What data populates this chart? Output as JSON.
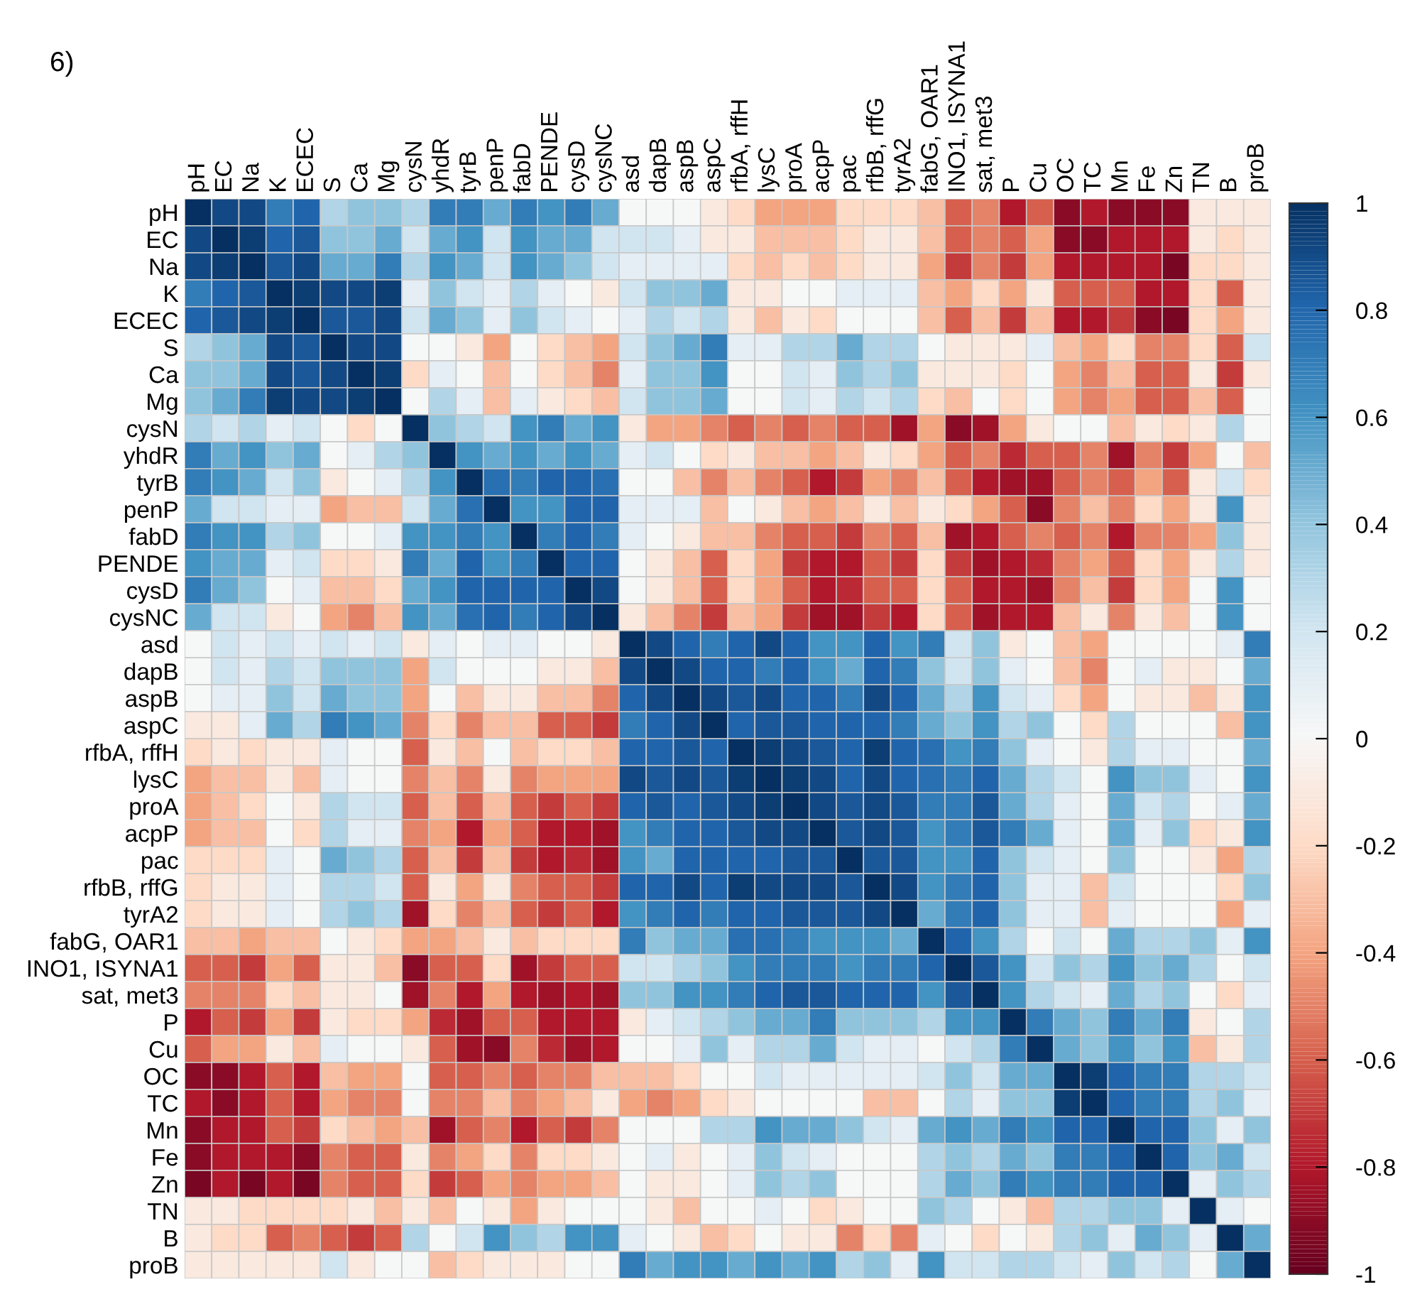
{
  "chart_data": {
    "type": "heatmap",
    "title": "6)",
    "categories": [
      "pH",
      "EC",
      "Na",
      "K",
      "ECEC",
      "S",
      "Ca",
      "Mg",
      "cysN",
      "yhdR",
      "tyrB",
      "penP",
      "fabD",
      "PENDE",
      "cysD",
      "cysNC",
      "asd",
      "dapB",
      "aspB",
      "aspC",
      "rfbA, rffH",
      "lysC",
      "proA",
      "acpP",
      "pac",
      "rfbB, rffG",
      "tyrA2",
      "fabG, OAR1",
      "INO1, ISYNA1",
      "sat, met3",
      "P",
      "Cu",
      "OC",
      "TC",
      "Mn",
      "Fe",
      "Zn",
      "TN",
      "B",
      "proB"
    ],
    "y_categories": [
      "pH",
      "EC",
      "Na",
      "K",
      "ECEC",
      "S",
      "Ca",
      "Mg",
      "cysN",
      "yhdR",
      "tyrB",
      "penP",
      "fabD",
      "PENDE",
      "cysD",
      "cysNC",
      "asd",
      "dapB",
      "aspB",
      "aspC",
      "rfbA, rffH",
      "lysC",
      "proA",
      "acpP",
      "pac",
      "rfbB, rffG",
      "tyrA2",
      "fabG, OAR1",
      "INO1, ISYNA1",
      "sat, met3",
      "P",
      "Cu",
      "OC",
      "TC",
      "Mn",
      "Fe",
      "Zn",
      "TN",
      "B",
      "proB"
    ],
    "cells": [
      [
        1,
        0.9,
        0.9,
        0.7,
        0.8,
        0.3,
        0.4,
        0.4,
        0.3,
        0.7,
        0.7,
        0.5,
        0.7,
        0.6,
        0.7,
        0.5,
        0,
        0,
        0,
        -0.1,
        -0.2,
        -0.4,
        -0.4,
        -0.4,
        -0.2,
        -0.2,
        -0.2,
        -0.3,
        -0.6,
        -0.5,
        -0.8,
        -0.6,
        -0.9,
        -0.8,
        -0.9,
        -0.9,
        -0.9,
        -0.1,
        -0.1,
        -0.1
      ],
      [
        0.9,
        1,
        0.95,
        0.8,
        0.85,
        0.4,
        0.4,
        0.5,
        0.2,
        0.5,
        0.6,
        0.2,
        0.6,
        0.5,
        0.5,
        0.2,
        0.2,
        0.2,
        0.1,
        -0.1,
        -0.1,
        -0.3,
        -0.3,
        -0.3,
        -0.2,
        -0.1,
        -0.1,
        -0.3,
        -0.6,
        -0.5,
        -0.6,
        -0.4,
        -0.9,
        -0.9,
        -0.8,
        -0.8,
        -0.8,
        -0.1,
        -0.2,
        -0.1
      ],
      [
        0.9,
        0.95,
        1,
        0.85,
        0.9,
        0.5,
        0.5,
        0.7,
        0.3,
        0.6,
        0.5,
        0.2,
        0.6,
        0.5,
        0.4,
        0.2,
        0.1,
        0.1,
        0.1,
        0.1,
        -0.2,
        -0.3,
        -0.2,
        -0.3,
        -0.2,
        -0.1,
        -0.1,
        -0.4,
        -0.7,
        -0.5,
        -0.7,
        -0.4,
        -0.8,
        -0.8,
        -0.8,
        -0.8,
        -0.95,
        -0.2,
        -0.2,
        -0.1
      ],
      [
        0.7,
        0.8,
        0.85,
        1,
        0.95,
        0.9,
        0.9,
        0.95,
        0.1,
        0.4,
        0.2,
        0.1,
        0.3,
        0.1,
        0,
        -0.1,
        0.2,
        0.4,
        0.4,
        0.5,
        -0.1,
        -0.1,
        0,
        0,
        0.1,
        0.1,
        0.1,
        -0.3,
        -0.4,
        -0.2,
        -0.4,
        -0.1,
        -0.6,
        -0.6,
        -0.6,
        -0.8,
        -0.8,
        -0.2,
        -0.6,
        -0.1
      ],
      [
        0.8,
        0.85,
        0.9,
        0.95,
        1,
        0.85,
        0.85,
        0.9,
        0.2,
        0.5,
        0.4,
        0.1,
        0.4,
        0.2,
        0.1,
        0,
        0.1,
        0.3,
        0.2,
        0.3,
        -0.1,
        -0.3,
        -0.1,
        -0.2,
        0,
        0,
        0,
        -0.3,
        -0.6,
        -0.3,
        -0.7,
        -0.3,
        -0.8,
        -0.8,
        -0.7,
        -0.9,
        -0.95,
        -0.2,
        -0.4,
        -0.1
      ],
      [
        0.3,
        0.4,
        0.5,
        0.9,
        0.85,
        1,
        0.9,
        0.9,
        0,
        0,
        -0.1,
        -0.4,
        0,
        -0.2,
        -0.3,
        -0.4,
        0.2,
        0.4,
        0.5,
        0.7,
        0.1,
        0.1,
        0.3,
        0.3,
        0.5,
        0.3,
        0.3,
        0,
        -0.1,
        -0.1,
        -0.1,
        0.1,
        -0.3,
        -0.4,
        -0.2,
        -0.5,
        -0.5,
        -0.2,
        -0.6,
        0.2
      ],
      [
        0.4,
        0.4,
        0.5,
        0.9,
        0.85,
        0.9,
        1,
        0.95,
        -0.2,
        0.1,
        0,
        -0.3,
        0,
        -0.2,
        -0.3,
        -0.5,
        0.1,
        0.4,
        0.4,
        0.6,
        0,
        0,
        0.2,
        0.1,
        0.4,
        0.3,
        0.4,
        -0.1,
        -0.1,
        -0.1,
        -0.2,
        0,
        -0.4,
        -0.5,
        -0.3,
        -0.6,
        -0.6,
        -0.1,
        -0.7,
        -0.1
      ],
      [
        0.4,
        0.5,
        0.7,
        0.95,
        0.9,
        0.9,
        0.95,
        1,
        0,
        0.3,
        0.1,
        -0.3,
        0.1,
        -0.1,
        -0.2,
        -0.3,
        0.2,
        0.4,
        0.4,
        0.5,
        0,
        0,
        0.2,
        0.1,
        0.3,
        0.2,
        0.3,
        -0.2,
        -0.3,
        0,
        -0.2,
        0,
        -0.4,
        -0.5,
        -0.4,
        -0.6,
        -0.6,
        -0.3,
        -0.6,
        0
      ],
      [
        0.3,
        0.2,
        0.3,
        0.1,
        0.2,
        0,
        -0.2,
        0,
        1,
        0.4,
        0.3,
        0.2,
        0.6,
        0.7,
        0.5,
        0.6,
        -0.1,
        -0.4,
        -0.4,
        -0.5,
        -0.6,
        -0.5,
        -0.6,
        -0.5,
        -0.6,
        -0.6,
        -0.85,
        -0.4,
        -0.9,
        -0.85,
        -0.4,
        -0.1,
        0,
        0,
        -0.3,
        -0.1,
        -0.2,
        -0.1,
        0.3,
        0
      ],
      [
        0.7,
        0.5,
        0.6,
        0.4,
        0.5,
        0,
        0.1,
        0.3,
        0.4,
        1,
        0.6,
        0.5,
        0.6,
        0.5,
        0.6,
        0.5,
        0.1,
        0.2,
        0,
        -0.2,
        -0.1,
        -0.3,
        -0.3,
        -0.4,
        -0.3,
        -0.1,
        -0.2,
        -0.4,
        -0.6,
        -0.5,
        -0.75,
        -0.6,
        -0.6,
        -0.5,
        -0.85,
        -0.5,
        -0.7,
        -0.4,
        0,
        -0.3
      ],
      [
        0.7,
        0.6,
        0.5,
        0.2,
        0.4,
        -0.1,
        0,
        0.1,
        0.3,
        0.6,
        1,
        0.75,
        0.7,
        0.8,
        0.8,
        0.75,
        0,
        0,
        -0.3,
        -0.5,
        -0.3,
        -0.5,
        -0.6,
        -0.8,
        -0.7,
        -0.4,
        -0.5,
        -0.3,
        -0.6,
        -0.8,
        -0.85,
        -0.85,
        -0.6,
        -0.5,
        -0.6,
        -0.4,
        -0.6,
        -0.1,
        0.2,
        -0.2
      ],
      [
        0.5,
        0.2,
        0.2,
        0.1,
        0.1,
        -0.4,
        -0.3,
        -0.3,
        0.2,
        0.5,
        0.75,
        1,
        0.6,
        0.6,
        0.8,
        0.8,
        0.1,
        0.1,
        0.1,
        -0.3,
        0,
        -0.1,
        -0.3,
        -0.4,
        -0.3,
        -0.1,
        -0.3,
        -0.1,
        -0.2,
        -0.4,
        -0.6,
        -0.9,
        -0.5,
        -0.3,
        -0.5,
        -0.2,
        -0.4,
        -0.1,
        0.6,
        -0.1
      ],
      [
        0.7,
        0.6,
        0.6,
        0.3,
        0.4,
        0,
        0,
        0.1,
        0.6,
        0.6,
        0.7,
        0.6,
        1,
        0.7,
        0.8,
        0.7,
        0.1,
        0,
        -0.1,
        -0.3,
        -0.3,
        -0.5,
        -0.6,
        -0.6,
        -0.7,
        -0.5,
        -0.6,
        -0.3,
        -0.85,
        -0.8,
        -0.6,
        -0.5,
        -0.6,
        -0.5,
        -0.8,
        -0.5,
        -0.5,
        -0.4,
        0.4,
        -0.1
      ],
      [
        0.6,
        0.5,
        0.5,
        0.1,
        0.2,
        -0.2,
        -0.2,
        -0.1,
        0.7,
        0.5,
        0.8,
        0.6,
        0.7,
        1,
        0.8,
        0.8,
        0,
        -0.1,
        -0.3,
        -0.6,
        -0.2,
        -0.4,
        -0.7,
        -0.8,
        -0.8,
        -0.6,
        -0.7,
        -0.2,
        -0.7,
        -0.85,
        -0.8,
        -0.75,
        -0.5,
        -0.4,
        -0.6,
        -0.2,
        -0.4,
        -0.1,
        0.3,
        -0.1
      ],
      [
        0.7,
        0.5,
        0.4,
        0,
        0.1,
        -0.3,
        -0.3,
        -0.2,
        0.5,
        0.6,
        0.8,
        0.8,
        0.8,
        0.8,
        1,
        0.9,
        0,
        -0.1,
        -0.3,
        -0.6,
        -0.2,
        -0.4,
        -0.6,
        -0.8,
        -0.75,
        -0.6,
        -0.6,
        -0.2,
        -0.6,
        -0.8,
        -0.8,
        -0.85,
        -0.5,
        -0.3,
        -0.7,
        -0.2,
        -0.4,
        0,
        0.6,
        0
      ],
      [
        0.5,
        0.2,
        0.2,
        -0.1,
        0,
        -0.4,
        -0.5,
        -0.3,
        0.6,
        0.5,
        0.75,
        0.8,
        0.7,
        0.8,
        0.9,
        1,
        -0.1,
        -0.3,
        -0.5,
        -0.7,
        -0.3,
        -0.4,
        -0.7,
        -0.85,
        -0.85,
        -0.7,
        -0.8,
        -0.2,
        -0.6,
        -0.85,
        -0.8,
        -0.8,
        -0.3,
        -0.1,
        -0.5,
        -0.1,
        -0.3,
        0,
        0.6,
        0
      ],
      [
        0,
        0.2,
        0.1,
        0.2,
        0.1,
        0.2,
        0.1,
        0.2,
        -0.1,
        0.1,
        0,
        0.1,
        0.1,
        0,
        0,
        -0.1,
        1,
        0.9,
        0.8,
        0.7,
        0.8,
        0.9,
        0.8,
        0.6,
        0.6,
        0.8,
        0.6,
        0.7,
        0.2,
        0.4,
        -0.1,
        0,
        -0.3,
        -0.4,
        0,
        0,
        0,
        0,
        0.1,
        0.7
      ],
      [
        0,
        0.2,
        0.1,
        0.3,
        0.2,
        0.4,
        0.4,
        0.4,
        -0.4,
        0.2,
        0,
        0,
        0,
        -0.1,
        -0.1,
        -0.3,
        0.9,
        1,
        0.9,
        0.8,
        0.8,
        0.7,
        0.8,
        0.6,
        0.5,
        0.8,
        0.7,
        0.4,
        0.2,
        0.4,
        0.1,
        0,
        -0.3,
        -0.5,
        0,
        0.1,
        -0.1,
        -0.1,
        0,
        0.5
      ],
      [
        0,
        0.1,
        0.1,
        0.4,
        0.2,
        0.5,
        0.4,
        0.4,
        -0.4,
        0,
        -0.3,
        -0.1,
        -0.1,
        -0.3,
        -0.3,
        -0.5,
        0.8,
        0.9,
        1,
        0.9,
        0.85,
        0.9,
        0.8,
        0.8,
        0.7,
        0.9,
        0.8,
        0.5,
        0.3,
        0.6,
        0.2,
        0.1,
        -0.2,
        -0.4,
        0,
        -0.1,
        -0.1,
        -0.3,
        -0.1,
        0.6
      ],
      [
        -0.1,
        -0.1,
        0.1,
        0.5,
        0.3,
        0.7,
        0.6,
        0.5,
        -0.5,
        -0.2,
        -0.5,
        -0.3,
        -0.3,
        -0.6,
        -0.6,
        -0.7,
        0.7,
        0.8,
        0.9,
        1,
        0.8,
        0.85,
        0.85,
        0.8,
        0.8,
        0.8,
        0.7,
        0.5,
        0.4,
        0.6,
        0.3,
        0.4,
        0,
        -0.2,
        0.3,
        0,
        0,
        0,
        -0.3,
        0.6
      ],
      [
        -0.2,
        -0.1,
        -0.2,
        -0.1,
        -0.1,
        0.1,
        0,
        0,
        -0.6,
        -0.1,
        -0.3,
        0,
        -0.3,
        -0.2,
        -0.2,
        -0.3,
        0.8,
        0.8,
        0.85,
        0.8,
        1,
        0.95,
        0.9,
        0.85,
        0.8,
        0.95,
        0.8,
        0.75,
        0.6,
        0.7,
        0.4,
        0.1,
        0,
        -0.1,
        0.3,
        0.1,
        0.1,
        0,
        0,
        0.5
      ],
      [
        -0.4,
        -0.3,
        -0.3,
        -0.1,
        -0.3,
        0.1,
        0,
        0,
        -0.5,
        -0.3,
        -0.5,
        -0.1,
        -0.5,
        -0.4,
        -0.4,
        -0.4,
        0.9,
        0.85,
        0.9,
        0.85,
        0.95,
        1,
        0.95,
        0.9,
        0.8,
        0.9,
        0.8,
        0.75,
        0.7,
        0.8,
        0.5,
        0.3,
        0.2,
        0,
        0.6,
        0.4,
        0.4,
        0.1,
        0,
        0.6
      ],
      [
        -0.4,
        -0.3,
        -0.2,
        0,
        -0.1,
        0.3,
        0.2,
        0.2,
        -0.6,
        -0.3,
        -0.6,
        -0.3,
        -0.6,
        -0.7,
        -0.6,
        -0.7,
        0.8,
        0.85,
        0.8,
        0.85,
        0.9,
        0.95,
        1,
        0.9,
        0.85,
        0.9,
        0.85,
        0.7,
        0.7,
        0.85,
        0.5,
        0.3,
        0.1,
        0,
        0.5,
        0.2,
        0.3,
        0,
        0.1,
        0.5
      ],
      [
        -0.4,
        -0.3,
        -0.3,
        0,
        -0.2,
        0.3,
        0.1,
        0.1,
        -0.5,
        -0.4,
        -0.8,
        -0.4,
        -0.6,
        -0.8,
        -0.8,
        -0.85,
        0.6,
        0.7,
        0.8,
        0.8,
        0.85,
        0.9,
        0.9,
        1,
        0.85,
        0.9,
        0.85,
        0.6,
        0.7,
        0.85,
        0.7,
        0.5,
        0.1,
        0,
        0.5,
        0.1,
        0.4,
        -0.2,
        -0.1,
        0.6
      ],
      [
        -0.2,
        -0.2,
        -0.2,
        0.1,
        0,
        0.5,
        0.4,
        0.3,
        -0.6,
        -0.3,
        -0.7,
        -0.3,
        -0.7,
        -0.8,
        -0.75,
        -0.85,
        0.6,
        0.5,
        0.8,
        0.8,
        0.8,
        0.8,
        0.85,
        0.85,
        1,
        0.85,
        0.85,
        0.6,
        0.6,
        0.8,
        0.4,
        0.2,
        0.1,
        0,
        0.4,
        0,
        0,
        -0.1,
        -0.4,
        0.3
      ],
      [
        -0.2,
        -0.1,
        -0.1,
        0.1,
        0,
        0.3,
        0.3,
        0.2,
        -0.6,
        -0.1,
        -0.4,
        -0.1,
        -0.5,
        -0.6,
        -0.6,
        -0.7,
        0.8,
        0.8,
        0.9,
        0.8,
        0.95,
        0.9,
        0.9,
        0.9,
        0.85,
        1,
        0.9,
        0.6,
        0.7,
        0.8,
        0.4,
        0.1,
        0.1,
        -0.3,
        0.2,
        0,
        0,
        0,
        -0.2,
        0.4
      ],
      [
        -0.2,
        -0.1,
        -0.1,
        0.1,
        0,
        0.3,
        0.4,
        0.3,
        -0.85,
        -0.2,
        -0.5,
        -0.3,
        -0.6,
        -0.7,
        -0.6,
        -0.8,
        0.6,
        0.7,
        0.8,
        0.7,
        0.8,
        0.8,
        0.85,
        0.85,
        0.85,
        0.9,
        1,
        0.5,
        0.7,
        0.8,
        0.4,
        0.1,
        0.1,
        -0.3,
        0.1,
        0,
        0,
        0,
        -0.4,
        0.1
      ],
      [
        -0.3,
        -0.3,
        -0.4,
        -0.3,
        -0.3,
        0,
        -0.1,
        -0.2,
        -0.4,
        -0.4,
        -0.3,
        -0.1,
        -0.3,
        -0.2,
        -0.2,
        -0.2,
        0.7,
        0.4,
        0.5,
        0.5,
        0.75,
        0.75,
        0.7,
        0.6,
        0.6,
        0.6,
        0.5,
        1,
        0.8,
        0.6,
        0.3,
        0,
        0.2,
        0,
        0.5,
        0.3,
        0.3,
        0.4,
        0.1,
        0.6
      ],
      [
        -0.6,
        -0.6,
        -0.7,
        -0.4,
        -0.6,
        -0.1,
        -0.1,
        -0.3,
        -0.9,
        -0.6,
        -0.6,
        -0.2,
        -0.85,
        -0.7,
        -0.6,
        -0.6,
        0.2,
        0.2,
        0.3,
        0.4,
        0.6,
        0.7,
        0.7,
        0.7,
        0.6,
        0.7,
        0.7,
        0.8,
        1,
        0.85,
        0.6,
        0.2,
        0.4,
        0.3,
        0.6,
        0.4,
        0.5,
        0.3,
        0,
        0.2
      ],
      [
        -0.5,
        -0.5,
        -0.5,
        -0.2,
        -0.3,
        -0.1,
        -0.1,
        0,
        -0.85,
        -0.5,
        -0.8,
        -0.4,
        -0.8,
        -0.85,
        -0.8,
        -0.85,
        0.4,
        0.4,
        0.6,
        0.6,
        0.7,
        0.8,
        0.85,
        0.85,
        0.8,
        0.8,
        0.8,
        0.6,
        0.85,
        1,
        0.6,
        0.3,
        0.2,
        0.1,
        0.5,
        0.3,
        0.4,
        0,
        -0.2,
        0.1
      ],
      [
        -0.8,
        -0.6,
        -0.7,
        -0.4,
        -0.7,
        -0.1,
        -0.2,
        -0.2,
        -0.4,
        -0.75,
        -0.85,
        -0.6,
        -0.6,
        -0.8,
        -0.8,
        -0.8,
        -0.1,
        0.1,
        0.2,
        0.3,
        0.4,
        0.5,
        0.5,
        0.7,
        0.4,
        0.4,
        0.4,
        0.3,
        0.6,
        0.6,
        1,
        0.7,
        0.5,
        0.4,
        0.7,
        0.5,
        0.7,
        -0.1,
        0,
        0.3
      ],
      [
        -0.6,
        -0.4,
        -0.4,
        -0.1,
        -0.3,
        0.1,
        0,
        0,
        -0.1,
        -0.6,
        -0.85,
        -0.9,
        -0.5,
        -0.75,
        -0.85,
        -0.8,
        0,
        0,
        0.1,
        0.4,
        0.1,
        0.3,
        0.3,
        0.5,
        0.2,
        0.1,
        0.1,
        0,
        0.2,
        0.3,
        0.7,
        1,
        0.5,
        0.4,
        0.6,
        0.4,
        0.6,
        -0.3,
        -0.1,
        0.3
      ],
      [
        -0.9,
        -0.9,
        -0.8,
        -0.6,
        -0.8,
        -0.3,
        -0.4,
        -0.4,
        0,
        -0.6,
        -0.6,
        -0.5,
        -0.6,
        -0.5,
        -0.5,
        -0.3,
        -0.3,
        -0.3,
        -0.2,
        0,
        0,
        0.2,
        0.1,
        0.1,
        0.1,
        0.1,
        0.1,
        0.2,
        0.4,
        0.2,
        0.5,
        0.5,
        1,
        0.95,
        0.8,
        0.7,
        0.7,
        0.3,
        0.3,
        0.2
      ],
      [
        -0.8,
        -0.9,
        -0.8,
        -0.6,
        -0.8,
        -0.4,
        -0.5,
        -0.5,
        0,
        -0.5,
        -0.5,
        -0.3,
        -0.5,
        -0.4,
        -0.3,
        -0.1,
        -0.4,
        -0.5,
        -0.4,
        -0.2,
        -0.1,
        0,
        0,
        0,
        0,
        -0.3,
        -0.3,
        0,
        0.3,
        0.1,
        0.4,
        0.4,
        0.95,
        1,
        0.8,
        0.7,
        0.7,
        0.3,
        0.4,
        0.1
      ],
      [
        -0.9,
        -0.8,
        -0.8,
        -0.6,
        -0.7,
        -0.2,
        -0.3,
        -0.4,
        -0.3,
        -0.85,
        -0.6,
        -0.5,
        -0.8,
        -0.6,
        -0.7,
        -0.5,
        0,
        0,
        0,
        0.3,
        0.3,
        0.6,
        0.5,
        0.5,
        0.4,
        0.2,
        0.1,
        0.5,
        0.6,
        0.5,
        0.7,
        0.6,
        0.8,
        0.8,
        1,
        0.8,
        0.8,
        0.4,
        0.1,
        0.4
      ],
      [
        -0.9,
        -0.8,
        -0.8,
        -0.8,
        -0.9,
        -0.5,
        -0.6,
        -0.6,
        -0.1,
        -0.5,
        -0.4,
        -0.2,
        -0.5,
        -0.2,
        -0.2,
        -0.1,
        0,
        0.1,
        -0.1,
        0,
        0.1,
        0.4,
        0.2,
        0.1,
        0,
        0,
        0,
        0.3,
        0.4,
        0.3,
        0.5,
        0.4,
        0.7,
        0.7,
        0.8,
        1,
        0.8,
        0.4,
        0.5,
        0.2
      ],
      [
        -0.95,
        -0.8,
        -0.95,
        -0.8,
        -0.95,
        -0.5,
        -0.6,
        -0.6,
        -0.2,
        -0.7,
        -0.6,
        -0.4,
        -0.5,
        -0.4,
        -0.4,
        -0.3,
        0,
        -0.1,
        -0.1,
        0,
        0.1,
        0.4,
        0.3,
        0.4,
        0,
        0,
        0,
        0.3,
        0.5,
        0.4,
        0.7,
        0.6,
        0.7,
        0.7,
        0.8,
        0.8,
        1,
        0.1,
        0.4,
        0.3
      ],
      [
        -0.1,
        -0.1,
        -0.2,
        -0.2,
        -0.2,
        -0.2,
        -0.1,
        -0.3,
        -0.1,
        -0.3,
        0,
        -0.1,
        -0.4,
        -0.1,
        0,
        0,
        0,
        -0.1,
        -0.3,
        0,
        0,
        0.1,
        0,
        -0.2,
        -0.1,
        0,
        0,
        0.4,
        0.3,
        0,
        -0.1,
        -0.3,
        0.3,
        0.3,
        0.4,
        0.4,
        0.1,
        1,
        0.1,
        0
      ],
      [
        -0.1,
        -0.2,
        -0.2,
        -0.6,
        -0.5,
        -0.6,
        -0.7,
        -0.6,
        0.3,
        0,
        0.2,
        0.6,
        0.4,
        0.3,
        0.6,
        0.6,
        0.1,
        0,
        -0.1,
        -0.3,
        -0.2,
        0,
        -0.1,
        -0.1,
        -0.5,
        -0.2,
        -0.5,
        0.1,
        0,
        -0.2,
        0,
        -0.1,
        0.3,
        0.4,
        0.1,
        0.5,
        0.4,
        0.1,
        1,
        0.5
      ],
      [
        -0.1,
        -0.1,
        -0.1,
        -0.1,
        -0.1,
        0.2,
        -0.1,
        0,
        0,
        -0.3,
        -0.2,
        -0.1,
        -0.1,
        -0.1,
        0,
        0,
        0.7,
        0.5,
        0.6,
        0.6,
        0.5,
        0.6,
        0.5,
        0.6,
        0.3,
        0.4,
        0.1,
        0.6,
        0.2,
        0.2,
        0.3,
        0.3,
        0.2,
        0.1,
        0.4,
        0.2,
        0.3,
        0,
        0.5,
        1
      ]
    ],
    "clim": [
      -1,
      1
    ],
    "cticks": [
      {
        "value": -1,
        "label": "-1"
      },
      {
        "value": -0.8,
        "label": "-0.8"
      },
      {
        "value": -0.6,
        "label": "-0.6"
      },
      {
        "value": -0.4,
        "label": "-0.4"
      },
      {
        "value": -0.2,
        "label": "-0.2"
      },
      0,
      0.2,
      0.4,
      0.6,
      0.8,
      1
    ]
  }
}
